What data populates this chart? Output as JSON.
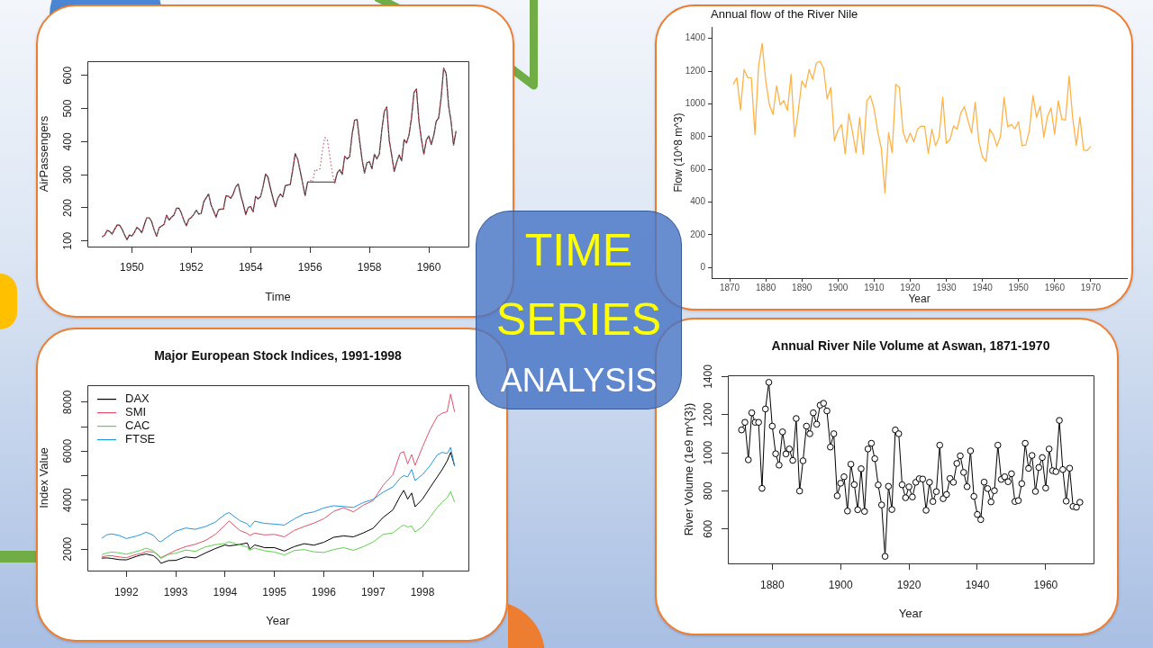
{
  "chart_data": [
    {
      "type": "line",
      "xlabel": "Time",
      "ylabel": "AirPassengers",
      "x": [
        "1949-01",
        "1949-02",
        "1949-03",
        "1949-04",
        "1949-05",
        "1949-06",
        "1949-07",
        "1949-08",
        "1949-09",
        "1949-10",
        "1949-11",
        "1949-12",
        "1950-01",
        "1950-02",
        "1950-03",
        "1950-04",
        "1950-05",
        "1950-06",
        "1950-07",
        "1950-08",
        "1950-09",
        "1950-10",
        "1950-11",
        "1950-12",
        "1951-01",
        "1951-02",
        "1951-03",
        "1951-04",
        "1951-05",
        "1951-06",
        "1951-07",
        "1951-08",
        "1951-09",
        "1951-10",
        "1951-11",
        "1951-12",
        "1952-01",
        "1952-02",
        "1952-03",
        "1952-04",
        "1952-05",
        "1952-06",
        "1952-07",
        "1952-08",
        "1952-09",
        "1952-10",
        "1952-11",
        "1952-12",
        "1953-01",
        "1953-02",
        "1953-03",
        "1953-04",
        "1953-05",
        "1953-06",
        "1953-07",
        "1953-08",
        "1953-09",
        "1953-10",
        "1953-11",
        "1953-12",
        "1954-01",
        "1954-02",
        "1954-03",
        "1954-04",
        "1954-05",
        "1954-06",
        "1954-07",
        "1954-08",
        "1954-09",
        "1954-10",
        "1954-11",
        "1954-12",
        "1955-01",
        "1955-02",
        "1955-03",
        "1955-04",
        "1955-05",
        "1955-06",
        "1955-07",
        "1955-08",
        "1955-09",
        "1955-10",
        "1955-11",
        "1955-12",
        "1956-01",
        "1956-02",
        "1956-03",
        "1956-04",
        "1956-05",
        "1956-06",
        "1956-07",
        "1956-08",
        "1956-09",
        "1956-10",
        "1956-11",
        "1956-12",
        "1957-01",
        "1957-02",
        "1957-03",
        "1957-04",
        "1957-05",
        "1957-06",
        "1957-07",
        "1957-08",
        "1957-09",
        "1957-10",
        "1957-11",
        "1957-12",
        "1958-01",
        "1958-02",
        "1958-03",
        "1958-04",
        "1958-05",
        "1958-06",
        "1958-07",
        "1958-08",
        "1958-09",
        "1958-10",
        "1958-11",
        "1958-12",
        "1959-01",
        "1959-02",
        "1959-03",
        "1959-04",
        "1959-05",
        "1959-06",
        "1959-07",
        "1959-08",
        "1959-09",
        "1959-10",
        "1959-11",
        "1959-12",
        "1960-01",
        "1960-02",
        "1960-03",
        "1960-04",
        "1960-05",
        "1960-06",
        "1960-07",
        "1960-08",
        "1960-09",
        "1960-10",
        "1960-11",
        "1960-12"
      ],
      "series": [
        {
          "color": "#333333",
          "values": [
            112,
            118,
            132,
            129,
            121,
            135,
            148,
            148,
            136,
            119,
            104,
            118,
            115,
            126,
            141,
            135,
            125,
            149,
            170,
            170,
            158,
            133,
            114,
            140,
            145,
            150,
            178,
            163,
            172,
            178,
            199,
            199,
            184,
            162,
            146,
            166,
            171,
            180,
            193,
            181,
            183,
            218,
            230,
            242,
            209,
            191,
            172,
            194,
            196,
            196,
            236,
            235,
            229,
            243,
            264,
            272,
            237,
            211,
            180,
            201,
            204,
            188,
            235,
            227,
            234,
            264,
            302,
            293,
            259,
            229,
            203,
            229,
            242,
            233,
            267,
            269,
            270,
            315,
            364,
            347,
            312,
            274,
            237,
            278,
            278,
            278,
            278,
            278,
            278,
            278,
            278,
            278,
            278,
            278,
            278,
            306,
            315,
            301,
            356,
            348,
            355,
            422,
            465,
            467,
            404,
            347,
            305,
            336,
            340,
            318,
            362,
            348,
            363,
            435,
            491,
            505,
            404,
            359,
            310,
            337,
            360,
            342,
            406,
            396,
            420,
            472,
            548,
            559,
            463,
            407,
            362,
            405,
            417,
            391,
            419,
            461,
            472,
            535,
            622,
            606,
            508,
            461,
            390,
            432
          ]
        },
        {
          "color": "#df536b",
          "line_style": "dotted",
          "values": [
            112,
            118,
            132,
            129,
            121,
            135,
            148,
            148,
            136,
            119,
            104,
            118,
            115,
            126,
            141,
            135,
            125,
            149,
            170,
            170,
            158,
            133,
            114,
            140,
            145,
            150,
            178,
            163,
            172,
            178,
            199,
            199,
            184,
            162,
            146,
            166,
            171,
            180,
            193,
            181,
            183,
            218,
            230,
            242,
            209,
            191,
            172,
            194,
            196,
            196,
            236,
            235,
            229,
            243,
            264,
            272,
            237,
            211,
            180,
            201,
            204,
            188,
            235,
            227,
            234,
            264,
            302,
            293,
            259,
            229,
            203,
            229,
            242,
            233,
            267,
            269,
            270,
            315,
            364,
            347,
            312,
            274,
            237,
            278,
            284,
            277,
            317,
            313,
            318,
            374,
            413,
            405,
            355,
            306,
            271,
            306,
            315,
            301,
            356,
            348,
            355,
            422,
            465,
            467,
            404,
            347,
            305,
            336,
            340,
            318,
            362,
            348,
            363,
            435,
            491,
            505,
            404,
            359,
            310,
            337,
            360,
            342,
            406,
            396,
            420,
            472,
            548,
            559,
            463,
            407,
            362,
            405,
            417,
            391,
            419,
            461,
            472,
            535,
            622,
            606,
            508,
            461,
            390,
            432
          ]
        }
      ],
      "xlim": [
        "1948-07",
        "1961-05"
      ],
      "xticks": [
        "1950",
        "1952",
        "1954",
        "1956",
        "1958",
        "1960"
      ],
      "ylim": [
        83,
        643
      ],
      "yticks": [
        100,
        200,
        300,
        400,
        500,
        600
      ]
    },
    {
      "type": "line",
      "title": "Annual flow of the River Nile",
      "xlabel": "Year",
      "ylabel": "Flow (10^8 m^3)",
      "x": [
        1871,
        1872,
        1873,
        1874,
        1875,
        1876,
        1877,
        1878,
        1879,
        1880,
        1881,
        1882,
        1883,
        1884,
        1885,
        1886,
        1887,
        1888,
        1889,
        1890,
        1891,
        1892,
        1893,
        1894,
        1895,
        1896,
        1897,
        1898,
        1899,
        1900,
        1901,
        1902,
        1903,
        1904,
        1905,
        1906,
        1907,
        1908,
        1909,
        1910,
        1911,
        1912,
        1913,
        1914,
        1915,
        1916,
        1917,
        1918,
        1919,
        1920,
        1921,
        1922,
        1923,
        1924,
        1925,
        1926,
        1927,
        1928,
        1929,
        1930,
        1931,
        1932,
        1933,
        1934,
        1935,
        1936,
        1937,
        1938,
        1939,
        1940,
        1941,
        1942,
        1943,
        1944,
        1945,
        1946,
        1947,
        1948,
        1949,
        1950,
        1951,
        1952,
        1953,
        1954,
        1955,
        1956,
        1957,
        1958,
        1959,
        1960,
        1961,
        1962,
        1963,
        1964,
        1965,
        1966,
        1967,
        1968,
        1969,
        1970
      ],
      "series": [
        {
          "color": "#ffb347",
          "values": [
            1120,
            1160,
            963,
            1210,
            1160,
            1160,
            813,
            1230,
            1370,
            1140,
            995,
            935,
            1110,
            994,
            1020,
            960,
            1180,
            799,
            958,
            1140,
            1100,
            1210,
            1150,
            1250,
            1260,
            1220,
            1030,
            1100,
            774,
            840,
            874,
            694,
            940,
            833,
            701,
            916,
            692,
            1020,
            1050,
            969,
            831,
            726,
            456,
            824,
            702,
            1120,
            1100,
            832,
            764,
            821,
            768,
            845,
            864,
            862,
            698,
            845,
            744,
            796,
            1040,
            759,
            781,
            865,
            845,
            944,
            984,
            897,
            822,
            1010,
            771,
            676,
            649,
            846,
            812,
            742,
            801,
            1040,
            860,
            874,
            848,
            890,
            744,
            749,
            838,
            1050,
            918,
            986,
            797,
            923,
            975,
            815,
            1020,
            906,
            901,
            1170,
            912,
            746,
            919,
            718,
            714,
            740
          ]
        }
      ],
      "xlim": [
        1865,
        1980
      ],
      "xticks": [
        1870,
        1880,
        1890,
        1900,
        1910,
        1920,
        1930,
        1940,
        1950,
        1960,
        1970
      ],
      "ylim": [
        -65,
        1470
      ],
      "yticks": [
        0,
        200,
        400,
        600,
        800,
        1000,
        1200,
        1400
      ]
    },
    {
      "type": "other",
      "title": "TIME SERIES",
      "subtitle": "ANALYSIS"
    },
    {
      "type": "line",
      "title": "Major European Stock Indices, 1991-1998",
      "xlabel": "Year",
      "ylabel": "Index Value",
      "legend": "top left",
      "x": [
        1991.5,
        1991.6,
        1991.7,
        1991.85,
        1992,
        1992.2,
        1992.3,
        1992.4,
        1992.55,
        1992.65,
        1992.7,
        1992.85,
        1993,
        1993.2,
        1993.4,
        1993.6,
        1993.8,
        1994,
        1994.08,
        1994.3,
        1994.45,
        1994.5,
        1994.6,
        1994.8,
        1995,
        1995.2,
        1995.4,
        1995.6,
        1995.8,
        1996,
        1996.2,
        1996.4,
        1996.6,
        1996.8,
        1997,
        1997.2,
        1997.4,
        1997.55,
        1997.62,
        1997.7,
        1997.78,
        1997.85,
        1998,
        1998.15,
        1998.3,
        1998.4,
        1998.5,
        1998.57,
        1998.65
      ],
      "series": [
        {
          "name": "DAX",
          "color": "#000000",
          "values": [
            1630,
            1640,
            1620,
            1570,
            1560,
            1700,
            1760,
            1800,
            1730,
            1560,
            1420,
            1530,
            1540,
            1680,
            1640,
            1840,
            2020,
            2170,
            2130,
            2190,
            2250,
            2000,
            2170,
            2060,
            2060,
            1920,
            2100,
            2220,
            2160,
            2280,
            2480,
            2540,
            2500,
            2660,
            2850,
            3290,
            3600,
            4170,
            4400,
            4040,
            4290,
            3730,
            4040,
            4500,
            4950,
            5250,
            5600,
            5950,
            5400
          ]
        },
        {
          "name": "SMI",
          "color": "#df536b",
          "values": [
            1680,
            1720,
            1730,
            1680,
            1650,
            1780,
            1820,
            1900,
            1880,
            1760,
            1650,
            1800,
            1950,
            2100,
            2200,
            2350,
            2600,
            2980,
            3150,
            2760,
            2640,
            2560,
            2650,
            2580,
            2600,
            2500,
            2760,
            2920,
            3060,
            3240,
            3540,
            3690,
            3520,
            3790,
            3980,
            4600,
            5040,
            5920,
            5980,
            5480,
            5860,
            5420,
            6170,
            6860,
            7420,
            7550,
            7610,
            8330,
            7600
          ]
        },
        {
          "name": "CAC",
          "color": "#61d04f",
          "values": [
            1770,
            1840,
            1880,
            1850,
            1790,
            1900,
            1960,
            2040,
            1930,
            1720,
            1620,
            1780,
            1830,
            1960,
            1910,
            2090,
            2180,
            2230,
            2300,
            2170,
            2080,
            1950,
            2040,
            1930,
            1880,
            1760,
            1940,
            1980,
            1890,
            1860,
            1980,
            2060,
            1950,
            2100,
            2290,
            2600,
            2660,
            2900,
            2980,
            2900,
            2950,
            2700,
            2910,
            3300,
            3700,
            3920,
            4100,
            4350,
            3920
          ]
        },
        {
          "name": "FTSE",
          "color": "#2297e6",
          "values": [
            2440,
            2580,
            2620,
            2560,
            2430,
            2530,
            2600,
            2690,
            2560,
            2330,
            2300,
            2520,
            2730,
            2860,
            2810,
            2920,
            3100,
            3420,
            3490,
            3160,
            3030,
            2900,
            3140,
            3050,
            3020,
            2980,
            3230,
            3440,
            3520,
            3680,
            3770,
            3740,
            3700,
            3900,
            4030,
            4320,
            4540,
            4900,
            5000,
            4950,
            5250,
            4800,
            5040,
            5400,
            5850,
            5950,
            5900,
            6150,
            5400
          ]
        }
      ],
      "xlim": [
        1991.21,
        1998.93
      ],
      "xticks": [
        1992,
        1993,
        1994,
        1995,
        1996,
        1997,
        1998
      ],
      "ylim": [
        1122,
        8692
      ],
      "yticks": [
        2000,
        {
          "value": 3000,
          "label": null
        },
        4000,
        {
          "value": 5000,
          "label": null
        },
        6000,
        {
          "value": 7000,
          "label": null
        },
        8000
      ]
    },
    {
      "type": "line",
      "title": "Annual River Nile Volume at Aswan, 1871-1970",
      "xlabel": "Year",
      "ylabel": "River Volume (1e9 m^{3})",
      "marker": "circle",
      "x": [
        1871,
        1872,
        1873,
        1874,
        1875,
        1876,
        1877,
        1878,
        1879,
        1880,
        1881,
        1882,
        1883,
        1884,
        1885,
        1886,
        1887,
        1888,
        1889,
        1890,
        1891,
        1892,
        1893,
        1894,
        1895,
        1896,
        1897,
        1898,
        1899,
        1900,
        1901,
        1902,
        1903,
        1904,
        1905,
        1906,
        1907,
        1908,
        1909,
        1910,
        1911,
        1912,
        1913,
        1914,
        1915,
        1916,
        1917,
        1918,
        1919,
        1920,
        1921,
        1922,
        1923,
        1924,
        1925,
        1926,
        1927,
        1928,
        1929,
        1930,
        1931,
        1932,
        1933,
        1934,
        1935,
        1936,
        1937,
        1938,
        1939,
        1940,
        1941,
        1942,
        1943,
        1944,
        1945,
        1946,
        1947,
        1948,
        1949,
        1950,
        1951,
        1952,
        1953,
        1954,
        1955,
        1956,
        1957,
        1958,
        1959,
        1960,
        1961,
        1962,
        1963,
        1964,
        1965,
        1966,
        1967,
        1968,
        1969,
        1970
      ],
      "series": [
        {
          "color": "#000000",
          "values": [
            1120,
            1160,
            963,
            1210,
            1160,
            1160,
            813,
            1230,
            1370,
            1140,
            995,
            935,
            1110,
            994,
            1020,
            960,
            1180,
            799,
            958,
            1140,
            1100,
            1210,
            1150,
            1250,
            1260,
            1220,
            1030,
            1100,
            774,
            840,
            874,
            694,
            940,
            833,
            701,
            916,
            692,
            1020,
            1050,
            969,
            831,
            726,
            456,
            824,
            702,
            1120,
            1100,
            832,
            764,
            821,
            768,
            845,
            864,
            862,
            698,
            845,
            744,
            796,
            1040,
            759,
            781,
            865,
            845,
            944,
            984,
            897,
            822,
            1010,
            771,
            676,
            649,
            846,
            812,
            742,
            801,
            1040,
            860,
            874,
            848,
            890,
            744,
            749,
            838,
            1050,
            918,
            986,
            797,
            923,
            975,
            815,
            1020,
            906,
            901,
            1170,
            912,
            746,
            919,
            718,
            714,
            740
          ]
        }
      ],
      "xlim": [
        1867,
        1974
      ],
      "xticks": [
        1880,
        1900,
        1920,
        1940,
        1960
      ],
      "ylim": [
        419,
        1407
      ],
      "yticks": [
        600,
        800,
        1000,
        1200,
        1400
      ]
    }
  ]
}
